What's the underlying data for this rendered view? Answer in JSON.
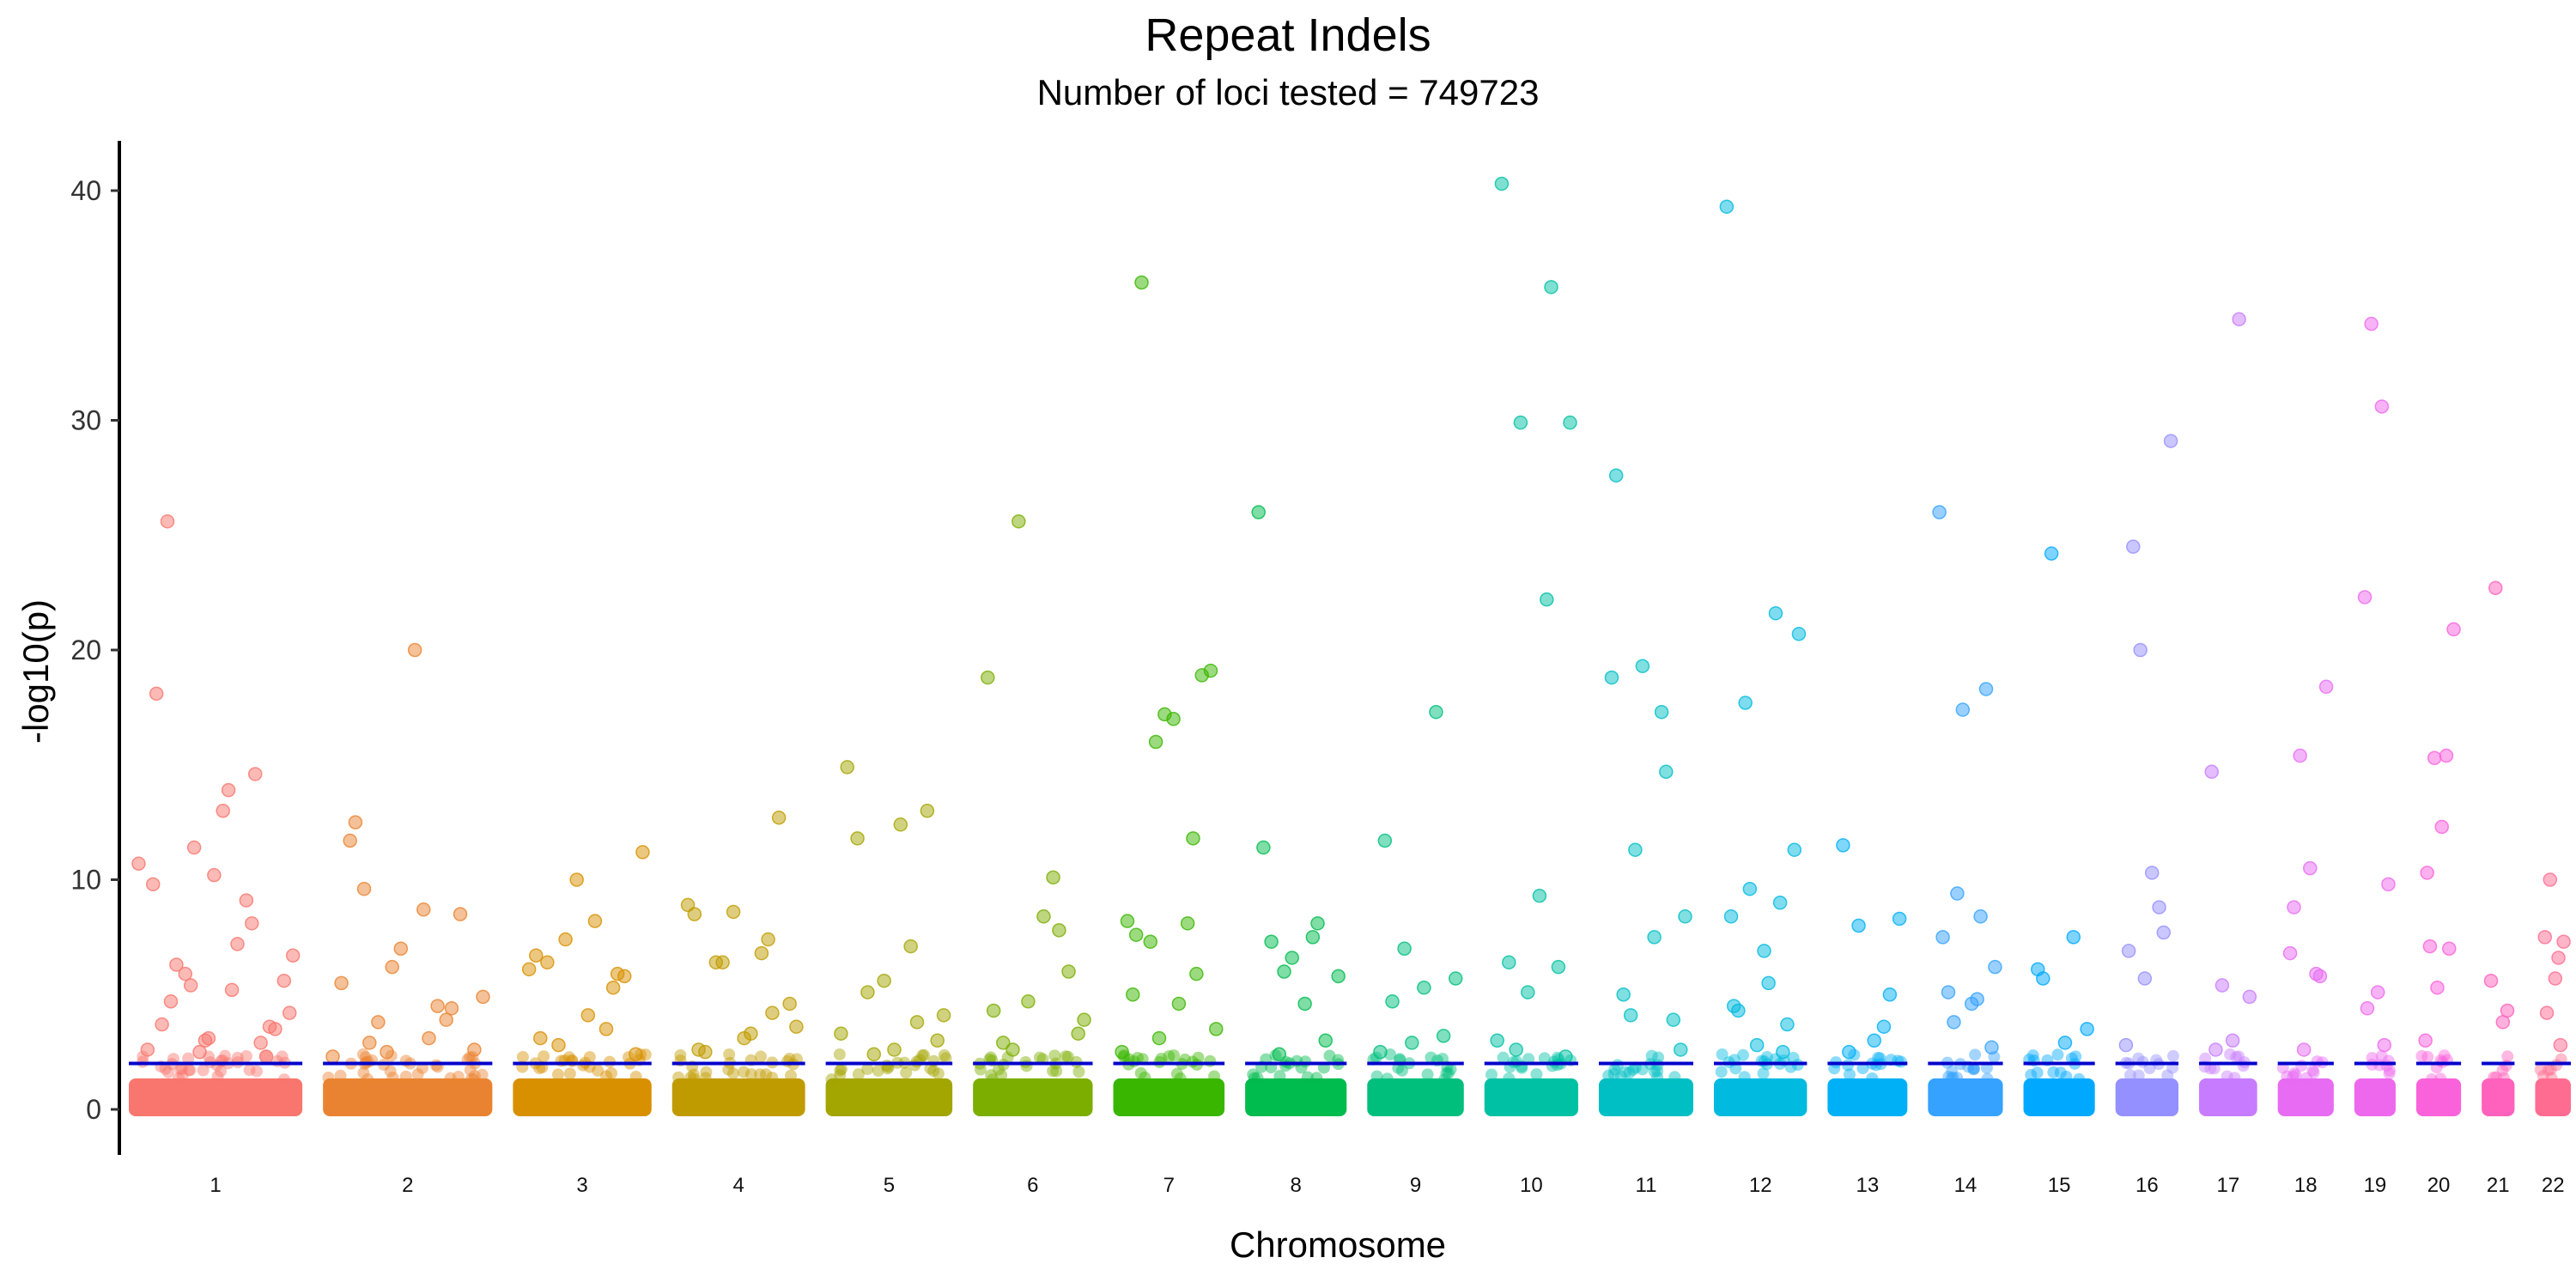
{
  "chart_data": {
    "type": "scatter",
    "title": "Repeat Indels",
    "subtitle": "Number of loci tested = 749723",
    "xlabel": "Chromosome",
    "ylabel": "-log10(p)",
    "ylim": [
      -2,
      42
    ],
    "yticks": [
      0,
      10,
      20,
      30,
      40
    ],
    "threshold": 2,
    "threshold_color": "#0000cc",
    "grid": false,
    "legend": "none",
    "chromosomes": [
      {
        "label": "1",
        "color": "#F8766D",
        "sig": [
          18.1,
          14.6,
          11.4,
          6.7,
          5.2,
          4.7,
          3.6,
          3.1,
          2.6,
          9.1,
          5.9,
          5.6,
          13.0,
          3.7,
          2.9,
          2.5,
          10.7,
          7.2,
          6.3,
          3.5,
          10.2,
          9.8,
          8.1,
          5.4,
          4.2,
          13.9,
          25.6,
          2.3,
          3.0
        ]
      },
      {
        "label": "2",
        "color": "#EA8331",
        "sig": [
          11.7,
          3.9,
          2.5,
          4.9,
          8.7,
          9.6,
          8.5,
          7.0,
          5.5,
          4.5,
          3.8,
          2.6,
          20.0,
          12.5,
          4.4,
          6.2,
          2.3,
          3.1,
          2.9
        ]
      },
      {
        "label": "3",
        "color": "#D89000",
        "sig": [
          6.7,
          5.3,
          7.4,
          11.2,
          8.2,
          6.4,
          5.8,
          10.0,
          6.1,
          3.5,
          2.8,
          2.4,
          4.1,
          3.1,
          5.9
        ]
      },
      {
        "label": "4",
        "color": "#C09B00",
        "sig": [
          8.5,
          7.4,
          6.4,
          3.6,
          3.3,
          2.5,
          12.7,
          8.6,
          8.9,
          6.8,
          6.4,
          4.6,
          3.1,
          2.6,
          4.2
        ]
      },
      {
        "label": "5",
        "color": "#A3A500",
        "sig": [
          14.9,
          3.8,
          2.4,
          4.1,
          12.4,
          11.8,
          13.0,
          5.6,
          3.3,
          7.1,
          5.1,
          3.0,
          2.6
        ]
      },
      {
        "label": "6",
        "color": "#7CAE00",
        "sig": [
          4.3,
          7.8,
          25.6,
          3.9,
          8.4,
          2.9,
          6.0,
          4.7,
          18.8,
          10.1,
          2.6,
          3.3
        ]
      },
      {
        "label": "7",
        "color": "#39B600",
        "sig": [
          5.0,
          11.8,
          16.0,
          3.5,
          4.6,
          36.0,
          18.9,
          17.2,
          8.2,
          8.1,
          7.3,
          19.1,
          17.0,
          7.6,
          5.9,
          3.1,
          2.5
        ]
      },
      {
        "label": "8",
        "color": "#00BB4E",
        "sig": [
          11.4,
          8.1,
          6.0,
          5.8,
          4.6,
          7.3,
          3.0,
          6.6,
          26.0,
          7.5,
          2.4
        ]
      },
      {
        "label": "9",
        "color": "#00BF7D",
        "sig": [
          11.7,
          17.3,
          7.0,
          5.7,
          5.3,
          4.7,
          3.2,
          2.9,
          2.5
        ]
      },
      {
        "label": "10",
        "color": "#00C1A3",
        "sig": [
          40.3,
          35.8,
          29.9,
          29.9,
          9.3,
          6.4,
          6.2,
          5.1,
          3.0,
          22.2,
          2.6,
          2.3
        ]
      },
      {
        "label": "11",
        "color": "#00BFC4",
        "sig": [
          27.6,
          14.7,
          11.3,
          8.4,
          7.5,
          5.0,
          3.9,
          19.3,
          18.8,
          17.3,
          4.1,
          2.6
        ]
      },
      {
        "label": "12",
        "color": "#00BAE0",
        "sig": [
          8.4,
          9.0,
          9.6,
          20.7,
          5.5,
          4.3,
          3.7,
          2.8,
          39.3,
          21.6,
          17.7,
          11.3,
          6.9,
          4.5,
          2.5
        ]
      },
      {
        "label": "13",
        "color": "#00B0F6",
        "sig": [
          11.5,
          3.6,
          8.0,
          8.3,
          3.0,
          2.5,
          5.0
        ]
      },
      {
        "label": "14",
        "color": "#35A2FF",
        "sig": [
          7.5,
          8.4,
          9.4,
          6.2,
          4.6,
          5.1,
          18.3,
          17.4,
          26.0,
          4.8,
          3.8,
          2.7
        ]
      },
      {
        "label": "15",
        "color": "#00A9FF",
        "sig": [
          6.1,
          7.5,
          24.2,
          3.5,
          2.9,
          5.7
        ]
      },
      {
        "label": "16",
        "color": "#9590FF",
        "sig": [
          6.9,
          8.8,
          20.0,
          29.1,
          10.3,
          24.5,
          7.7,
          5.7,
          2.8
        ]
      },
      {
        "label": "17",
        "color": "#C77CFF",
        "sig": [
          14.7,
          34.4,
          5.4,
          4.9,
          3.0,
          2.6
        ]
      },
      {
        "label": "18",
        "color": "#E76BF3",
        "sig": [
          6.8,
          5.9,
          15.4,
          18.4,
          10.5,
          8.8,
          5.8,
          2.6
        ]
      },
      {
        "label": "19",
        "color": "#ED68ED",
        "sig": [
          22.3,
          30.6,
          34.2,
          9.8,
          5.1,
          4.4,
          2.8
        ]
      },
      {
        "label": "20",
        "color": "#FA62DB",
        "sig": [
          10.3,
          15.4,
          15.3,
          20.9,
          12.3,
          7.1,
          7.0,
          5.3,
          3.0
        ]
      },
      {
        "label": "21",
        "color": "#FF62BC",
        "sig": [
          5.6,
          3.8,
          22.7,
          4.3
        ]
      },
      {
        "label": "22",
        "color": "#FF6C91",
        "sig": [
          7.5,
          6.6,
          10.0,
          7.3,
          5.7,
          4.2,
          2.8
        ]
      }
    ]
  }
}
